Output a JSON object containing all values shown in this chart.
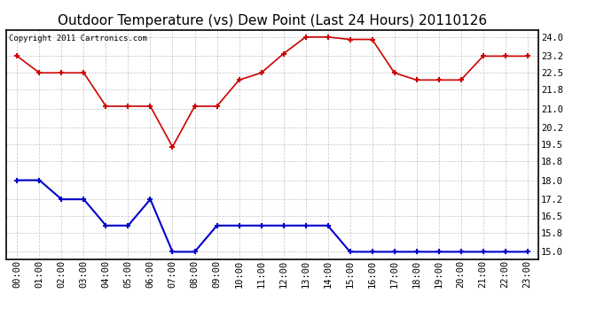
{
  "title": "Outdoor Temperature (vs) Dew Point (Last 24 Hours) 20110126",
  "copyright": "Copyright 2011 Cartronics.com",
  "x_labels": [
    "00:00",
    "01:00",
    "02:00",
    "03:00",
    "04:00",
    "05:00",
    "06:00",
    "07:00",
    "08:00",
    "09:00",
    "10:00",
    "11:00",
    "12:00",
    "13:00",
    "14:00",
    "15:00",
    "16:00",
    "17:00",
    "18:00",
    "19:00",
    "20:00",
    "21:00",
    "22:00",
    "23:00"
  ],
  "temp_data": [
    23.2,
    22.5,
    22.5,
    22.5,
    21.1,
    21.1,
    21.1,
    19.4,
    21.1,
    21.1,
    22.2,
    22.5,
    23.3,
    24.0,
    24.0,
    23.9,
    23.9,
    22.5,
    22.2,
    22.2,
    22.2,
    23.2,
    23.2,
    23.2
  ],
  "dew_data": [
    18.0,
    18.0,
    17.2,
    17.2,
    16.1,
    16.1,
    17.2,
    15.0,
    15.0,
    16.1,
    16.1,
    16.1,
    16.1,
    16.1,
    16.1,
    15.0,
    15.0,
    15.0,
    15.0,
    15.0,
    15.0,
    15.0,
    15.0,
    15.0
  ],
  "temp_color": "#cc0000",
  "dew_color": "#0000cc",
  "ylim": [
    14.7,
    24.3
  ],
  "yticks": [
    15.0,
    15.8,
    16.5,
    17.2,
    18.0,
    18.8,
    19.5,
    20.2,
    21.0,
    21.8,
    22.5,
    23.2,
    24.0
  ],
  "bg_color": "#ffffff",
  "plot_bg": "#ffffff",
  "grid_color": "#aaaaaa",
  "title_fontsize": 11,
  "copyright_fontsize": 6.5,
  "tick_fontsize": 7.5
}
